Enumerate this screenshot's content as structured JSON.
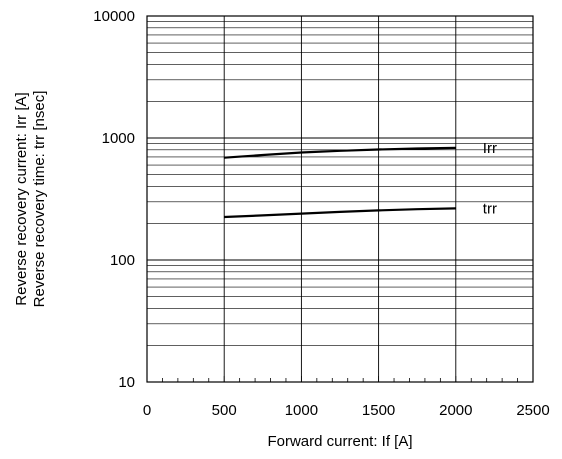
{
  "chart_data": {
    "type": "line",
    "xlabel": "Forward current: If [A]",
    "ylabel": [
      "Reverse recovery current: Irr [A]",
      "Reverse recovery time: trr [nsec]"
    ],
    "xlim": [
      0,
      2500
    ],
    "ylim": [
      10,
      10000
    ],
    "yscale": "log",
    "grid": true,
    "x_ticks": [
      0,
      500,
      1000,
      1500,
      2000,
      2500
    ],
    "x_tick_labels": [
      "0",
      "500",
      "1000",
      "1500",
      "2000",
      "2500"
    ],
    "y_ticks": [
      10,
      100,
      1000,
      10000
    ],
    "y_tick_labels": [
      "10",
      "100",
      "1000",
      "10000"
    ],
    "series": [
      {
        "name": "Irr",
        "x": [
          500,
          750,
          1000,
          1250,
          1500,
          1750,
          2000
        ],
        "y": [
          690,
          725,
          760,
          785,
          805,
          820,
          830
        ]
      },
      {
        "name": "trr",
        "x": [
          500,
          750,
          1000,
          1250,
          1500,
          1750,
          2000
        ],
        "y": [
          225,
          232,
          240,
          248,
          255,
          261,
          265
        ]
      }
    ],
    "colors": {
      "line": "#000000",
      "grid": "#000000"
    }
  }
}
